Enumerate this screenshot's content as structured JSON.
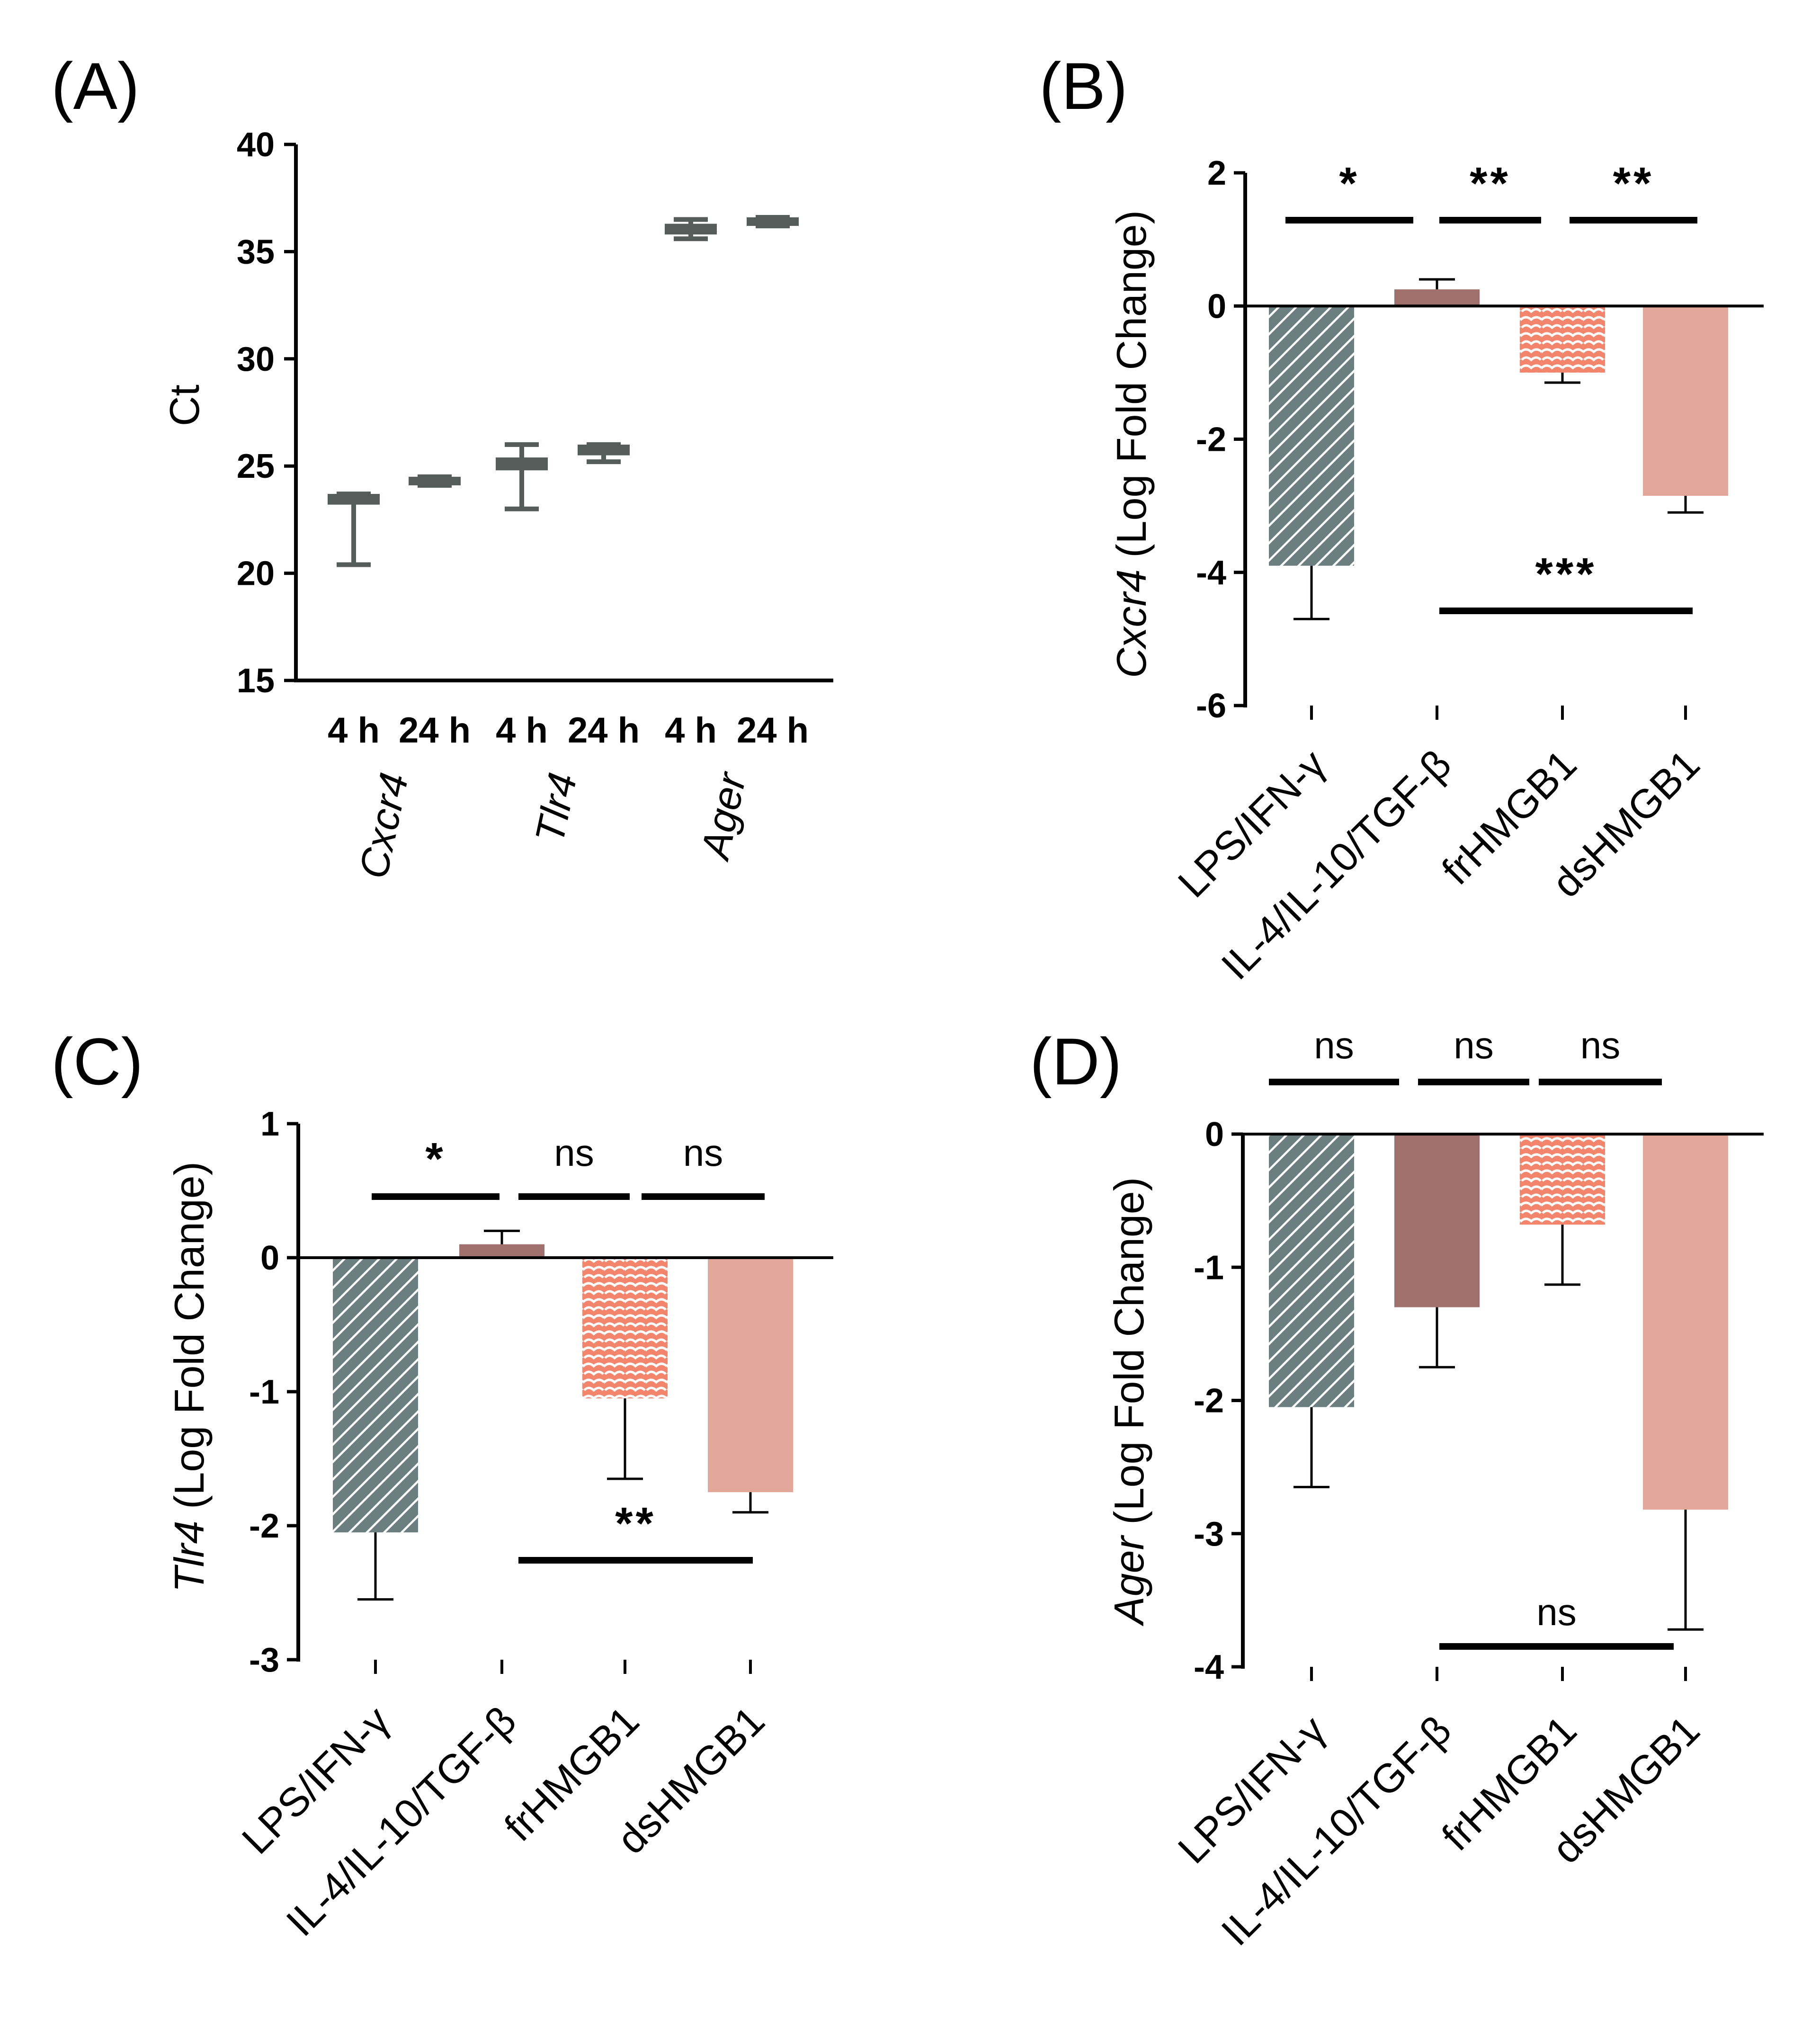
{
  "colors": {
    "box": "#555c59",
    "lps": "#6b7f80",
    "il4": "#a0706d",
    "frhmgb1": "#f2856c",
    "dshmgb1": "#e2a799",
    "axis": "#000000"
  },
  "chart_data": [
    {
      "panel": "(A)",
      "type": "box",
      "title": "",
      "ylabel": "Ct",
      "ylim": [
        15,
        40
      ],
      "yticks": [
        "15",
        "20",
        "25",
        "30",
        "35",
        "40"
      ],
      "genes": [
        {
          "name": "Cxcr4",
          "times": [
            {
              "label": "4 h",
              "min": 20.4,
              "q1": 23.2,
              "median": 23.4,
              "q3": 23.7,
              "max": 23.7
            },
            {
              "label": "24 h",
              "min": 24.1,
              "q1": 24.1,
              "median": 24.3,
              "q3": 24.5,
              "max": 24.5
            }
          ]
        },
        {
          "name": "Tlr4",
          "times": [
            {
              "label": "4 h",
              "min": 23.0,
              "q1": 24.8,
              "median": 25.1,
              "q3": 25.4,
              "max": 26.0
            },
            {
              "label": "24 h",
              "min": 25.2,
              "q1": 25.5,
              "median": 25.7,
              "q3": 26.0,
              "max": 26.0
            }
          ]
        },
        {
          "name": "Ager",
          "times": [
            {
              "label": "4 h",
              "min": 35.6,
              "q1": 35.8,
              "median": 36.0,
              "q3": 36.3,
              "max": 36.5
            },
            {
              "label": "24 h",
              "min": 36.2,
              "q1": 36.2,
              "median": 36.4,
              "q3": 36.6,
              "max": 36.6
            }
          ]
        }
      ]
    },
    {
      "panel": "(B)",
      "type": "bar",
      "gene": "Cxcr4",
      "ylabel_rest": " (Log Fold Change)",
      "ylim": [
        -6,
        2
      ],
      "yticks": [
        "-6",
        "-4",
        "-2",
        "0",
        "2"
      ],
      "categories": [
        "LPS/IFN-γ",
        "IL-4/IL-10/TGF-β",
        "frHMGB1",
        "dsHMGB1"
      ],
      "values": [
        -3.9,
        0.25,
        -1.0,
        -2.85
      ],
      "errors": [
        0.8,
        0.15,
        0.15,
        0.25
      ],
      "comparisons": [
        {
          "from": 0,
          "to": 1,
          "label": "*"
        },
        {
          "from": 1,
          "to": 2,
          "label": "**"
        },
        {
          "from": 2,
          "to": 3,
          "label": "**"
        },
        {
          "from": 1,
          "to": 3,
          "label": "***"
        }
      ]
    },
    {
      "panel": "(C)",
      "type": "bar",
      "gene": "Tlr4",
      "ylabel_rest": " (Log Fold Change)",
      "ylim": [
        -3,
        1
      ],
      "yticks": [
        "-3",
        "-2",
        "-1",
        "0",
        "1"
      ],
      "categories": [
        "LPS/IFN-γ",
        "IL-4/IL-10/TGF-β",
        "frHMGB1",
        "dsHMGB1"
      ],
      "values": [
        -2.05,
        0.1,
        -1.05,
        -1.75
      ],
      "errors": [
        0.5,
        0.1,
        0.6,
        0.15
      ],
      "comparisons": [
        {
          "from": 0,
          "to": 1,
          "label": "*"
        },
        {
          "from": 1,
          "to": 2,
          "label": "ns"
        },
        {
          "from": 2,
          "to": 3,
          "label": "ns"
        },
        {
          "from": 1,
          "to": 3,
          "label": "**"
        }
      ]
    },
    {
      "panel": "(D)",
      "type": "bar",
      "gene": "Ager",
      "ylabel_rest": " (Log Fold Change)",
      "ylim": [
        -4,
        0
      ],
      "yticks": [
        "-4",
        "-3",
        "-2",
        "-1",
        "0"
      ],
      "categories": [
        "LPS/IFN-γ",
        "IL-4/IL-10/TGF-β",
        "frHMGB1",
        "dsHMGB1"
      ],
      "values": [
        -2.05,
        -1.3,
        -0.68,
        -2.82
      ],
      "errors": [
        0.6,
        0.45,
        0.45,
        0.9
      ],
      "comparisons": [
        {
          "from": 0,
          "to": 1,
          "label": "ns"
        },
        {
          "from": 1,
          "to": 2,
          "label": "ns"
        },
        {
          "from": 2,
          "to": 3,
          "label": "ns"
        },
        {
          "from": 1,
          "to": 3,
          "label": "ns"
        }
      ]
    }
  ]
}
